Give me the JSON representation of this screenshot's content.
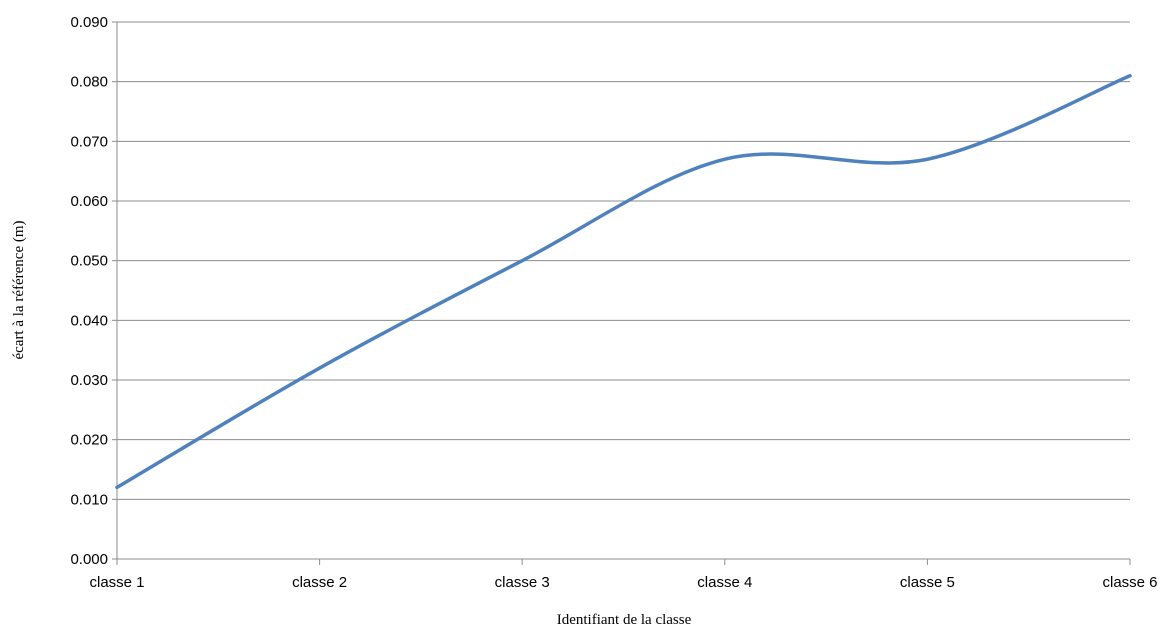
{
  "chart_data": {
    "type": "line",
    "title": "",
    "xlabel": "Identifiant de la classe",
    "ylabel": "écart à la référence (m)",
    "categories": [
      "classe 1",
      "classe 2",
      "classe 3",
      "classe 4",
      "classe 5",
      "classe 6"
    ],
    "series": [
      {
        "values": [
          0.012,
          0.032,
          0.05,
          0.067,
          0.067,
          0.081
        ],
        "color": "#4f81bd",
        "smooth": true
      }
    ],
    "ylim": [
      0,
      0.09
    ],
    "yticks": [
      "0.000",
      "0.010",
      "0.020",
      "0.030",
      "0.040",
      "0.050",
      "0.060",
      "0.070",
      "0.080",
      "0.090"
    ],
    "grid": "horizontal",
    "legend": "none"
  }
}
